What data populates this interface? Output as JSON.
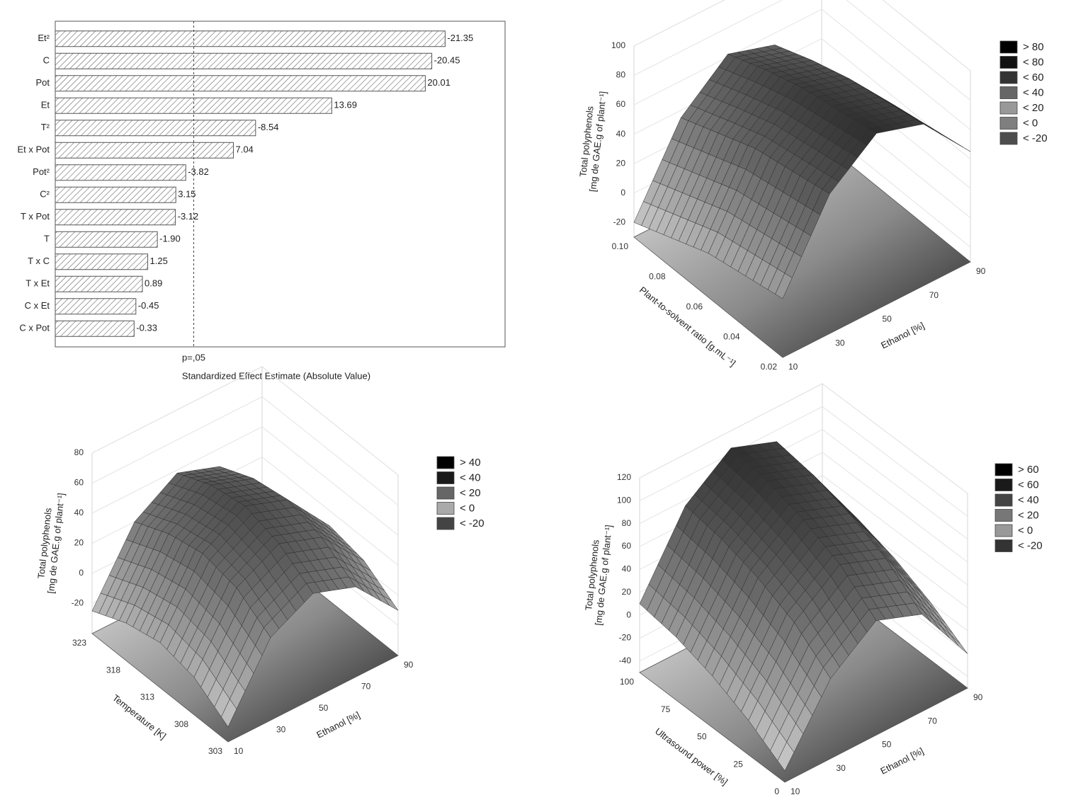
{
  "chart_data": [
    {
      "type": "pareto",
      "categories": [
        "Et²",
        "C",
        "Pot",
        "Et",
        "T²",
        "Et x Pot",
        "Pot²",
        "C²",
        "T x Pot",
        "T",
        "T x C",
        "T x Et",
        "C x Et",
        "C x Pot"
      ],
      "values": [
        21.35,
        20.45,
        20.01,
        13.69,
        8.54,
        7.04,
        3.82,
        3.15,
        3.12,
        1.9,
        1.25,
        0.89,
        0.45,
        0.33
      ],
      "value_labels": [
        "-21.35",
        "-20.45",
        "20.01",
        "13.69",
        "-8.54",
        "7.04",
        "-3.82",
        "3.15",
        "-3.12",
        "-1.90",
        "1.25",
        "0.89",
        "-0.45",
        "-0.33"
      ],
      "xlabel": "Standardized Effect Estimate (Absolute Value)",
      "xlim": [
        -5,
        25.4
      ],
      "reference_line": {
        "value": 4.36,
        "label": "p=,05"
      },
      "color": "#555555"
    },
    {
      "type": "surface",
      "zlabel": [
        "Total polyphenols",
        "[mg de GAE.g of plant⁻¹]"
      ],
      "xlabel": "Ethanol [%]",
      "ylabel": "Plant-to-solvent ratio [g.mL⁻¹]",
      "xlim": [
        10,
        90
      ],
      "xticks": [
        10,
        30,
        50,
        70,
        90
      ],
      "ylim": [
        0.02,
        0.1
      ],
      "yticks": [
        0.02,
        0.04,
        0.06,
        0.08,
        {
          "value": 0.1,
          "label": "0.10"
        }
      ],
      "zlim": [
        -30,
        100
      ],
      "zticks": [
        -20,
        0,
        20,
        40,
        60,
        80,
        100
      ],
      "z": [
        [
          10,
          65,
          90,
          80,
          45
        ],
        [
          5,
          60,
          85,
          75,
          40
        ],
        [
          0,
          55,
          80,
          70,
          35
        ],
        [
          -10,
          45,
          72,
          62,
          28
        ],
        [
          -20,
          35,
          62,
          52,
          20
        ]
      ],
      "legend": [
        {
          "label": "> 80",
          "color": "#000000"
        },
        {
          "label": "< 80",
          "color": "#111111"
        },
        {
          "label": "< 60",
          "color": "#333333"
        },
        {
          "label": "< 40",
          "color": "#666666"
        },
        {
          "label": "< 20",
          "color": "#999999"
        },
        {
          "label": "< 0",
          "color": "#7f7f7f"
        },
        {
          "label": "< -20",
          "color": "#4d4d4d"
        }
      ]
    },
    {
      "type": "surface",
      "zlabel": [
        "Total polyphenols",
        "[mg de GAE.g of plant⁻¹]"
      ],
      "xlabel": "Ethanol [%]",
      "ylabel": "Temperature [K]",
      "xlim": [
        10,
        90
      ],
      "xticks": [
        10,
        30,
        50,
        70,
        90
      ],
      "ylim": [
        303,
        323
      ],
      "yticks": [
        303,
        308,
        313,
        318,
        323
      ],
      "zlim": [
        -40,
        80
      ],
      "zticks": [
        -20,
        0,
        20,
        40,
        60,
        80
      ],
      "z": [
        [
          -30,
          15,
          30,
          20,
          -10
        ],
        [
          -15,
          30,
          45,
          35,
          5
        ],
        [
          -10,
          35,
          52,
          42,
          10
        ],
        [
          -15,
          30,
          48,
          38,
          5
        ],
        [
          -25,
          20,
          38,
          28,
          -5
        ]
      ],
      "legend": [
        {
          "label": "> 40",
          "color": "#000000"
        },
        {
          "label": "< 40",
          "color": "#1a1a1a"
        },
        {
          "label": "< 20",
          "color": "#666666"
        },
        {
          "label": "< 0",
          "color": "#aaaaaa"
        },
        {
          "label": "< -20",
          "color": "#444444"
        }
      ]
    },
    {
      "type": "surface",
      "zlabel": [
        "Total polyphenols",
        "[mg de GAE.g of plant⁻¹]"
      ],
      "xlabel": "Ethanol [%]",
      "ylabel": "Ultrasound power [%]",
      "xlim": [
        10,
        90
      ],
      "xticks": [
        10,
        30,
        50,
        70,
        90
      ],
      "ylim": [
        0,
        100
      ],
      "yticks": [
        0,
        25,
        50,
        75,
        100
      ],
      "zlim": [
        -50,
        120
      ],
      "zticks": [
        -40,
        -20,
        0,
        20,
        40,
        60,
        80,
        100,
        120
      ],
      "z": [
        [
          -40,
          20,
          50,
          35,
          -20
        ],
        [
          -20,
          45,
          75,
          60,
          0
        ],
        [
          -5,
          60,
          90,
          75,
          15
        ],
        [
          5,
          70,
          100,
          85,
          25
        ],
        [
          10,
          75,
          105,
          90,
          30
        ]
      ],
      "legend": [
        {
          "label": "> 60",
          "color": "#000000"
        },
        {
          "label": "< 60",
          "color": "#1a1a1a"
        },
        {
          "label": "< 40",
          "color": "#444444"
        },
        {
          "label": "< 20",
          "color": "#777777"
        },
        {
          "label": "< 0",
          "color": "#999999"
        },
        {
          "label": "< -20",
          "color": "#333333"
        }
      ]
    }
  ]
}
